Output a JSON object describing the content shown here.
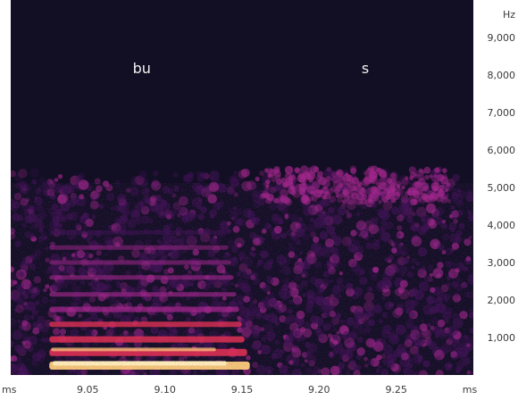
{
  "chart_data": {
    "type": "heatmap",
    "title": "",
    "xlabel": "",
    "ylabel": "",
    "x_unit": "ms",
    "y_unit": "Hz",
    "xlim": [
      9.0,
      9.3
    ],
    "ylim": [
      0,
      10000
    ],
    "x_ticks": [
      {
        "value": 9.0,
        "label": "ms"
      },
      {
        "value": 9.05,
        "label": "9.05"
      },
      {
        "value": 9.1,
        "label": "9.10"
      },
      {
        "value": 9.15,
        "label": "9.15"
      },
      {
        "value": 9.2,
        "label": "9.20"
      },
      {
        "value": 9.25,
        "label": "9.25"
      },
      {
        "value": 9.3,
        "label": "ms"
      }
    ],
    "y_ticks": [
      {
        "value": 10000,
        "label": "Hz"
      },
      {
        "value": 9000,
        "label": "9,000"
      },
      {
        "value": 8000,
        "label": "8,000"
      },
      {
        "value": 7000,
        "label": "7,000"
      },
      {
        "value": 6000,
        "label": "6,000"
      },
      {
        "value": 5000,
        "label": "5,000"
      },
      {
        "value": 4000,
        "label": "4,000"
      },
      {
        "value": 3000,
        "label": "3,000"
      },
      {
        "value": 2000,
        "label": "2,000"
      },
      {
        "value": 1000,
        "label": "1,000"
      }
    ],
    "segments": [
      {
        "label": "bu",
        "x": 9.085
      },
      {
        "label": "s",
        "x": 9.23
      }
    ],
    "colors": {
      "background": "#120f24",
      "low": "#3b1250",
      "mid": "#a0268a",
      "high": "#e03050",
      "peak": "#ffd27a",
      "axis_text": "#3a3a3a"
    }
  }
}
